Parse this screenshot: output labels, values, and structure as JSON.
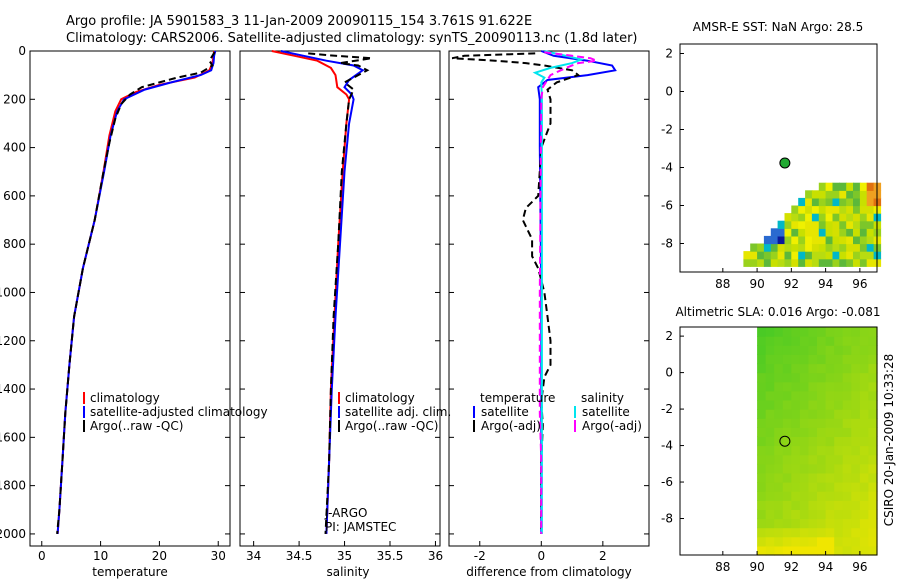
{
  "figure": {
    "title_line1": "Argo profile: JA 5901583_3 11-Jan-2009 20090115_154 3.761S 91.622E",
    "title_line2": "Climatology: CARS2006. Satellite-adjusted climatology: synTS_20090113.nc (1.8d later)",
    "side_label": "CSIRO 20-Jan-2009 10:33:28",
    "float_label_1": "J-ARGO",
    "float_label_2": "PI: JAMSTEC"
  },
  "colors": {
    "climatology": "#ff0000",
    "satellite": "#0000ff",
    "argo": "#000000",
    "sal_satellite": "#00e5ee",
    "sal_argo": "#ff00ff",
    "marker": "#22aa33"
  },
  "chart_data": [
    {
      "type": "line",
      "name": "temperature-profile",
      "xlabel": "temperature",
      "ylabel": "",
      "xlim": [
        -2,
        32
      ],
      "ylim": [
        2050,
        0
      ],
      "xticks": [
        0,
        10,
        20,
        30
      ],
      "yticks": [
        0,
        200,
        400,
        600,
        800,
        1000,
        1200,
        1400,
        1600,
        1800,
        2000
      ],
      "legend": [
        "climatology",
        "satellite-adjusted climatology",
        "Argo(..raw -QC)"
      ],
      "series": [
        {
          "name": "climatology",
          "style": "solid",
          "color": "climatology",
          "points": [
            [
              29.3,
              0
            ],
            [
              29.2,
              20
            ],
            [
              29,
              50
            ],
            [
              28.5,
              80
            ],
            [
              26,
              110
            ],
            [
              20,
              140
            ],
            [
              16,
              170
            ],
            [
              13.5,
              200
            ],
            [
              12.5,
              250
            ],
            [
              11.5,
              350
            ],
            [
              10.5,
              500
            ],
            [
              9,
              700
            ],
            [
              7,
              900
            ],
            [
              5.5,
              1100
            ],
            [
              4.7,
              1300
            ],
            [
              4,
              1500
            ],
            [
              3.5,
              1700
            ],
            [
              3,
              1900
            ],
            [
              2.7,
              2000
            ]
          ]
        },
        {
          "name": "satellite-adjusted climatology",
          "style": "solid",
          "color": "satellite",
          "points": [
            [
              29.5,
              0
            ],
            [
              29.3,
              20
            ],
            [
              29.2,
              50
            ],
            [
              28.8,
              80
            ],
            [
              27,
              100
            ],
            [
              22,
              130
            ],
            [
              17.5,
              160
            ],
            [
              14,
              200
            ],
            [
              12.8,
              250
            ],
            [
              11.7,
              350
            ],
            [
              10.6,
              500
            ],
            [
              9,
              700
            ],
            [
              7,
              900
            ],
            [
              5.5,
              1100
            ],
            [
              4.7,
              1300
            ],
            [
              4,
              1500
            ],
            [
              3.5,
              1700
            ],
            [
              3,
              1900
            ],
            [
              2.7,
              2000
            ]
          ]
        },
        {
          "name": "Argo(..raw -QC)",
          "style": "dashed",
          "color": "argo",
          "points": [
            [
              29.4,
              5
            ],
            [
              29,
              20
            ],
            [
              28.5,
              40
            ],
            [
              29,
              60
            ],
            [
              27,
              90
            ],
            [
              23,
              110
            ],
            [
              20,
              130
            ],
            [
              17,
              150
            ],
            [
              15,
              180
            ],
            [
              13.5,
              220
            ],
            [
              12.5,
              280
            ],
            [
              11.5,
              380
            ],
            [
              10.5,
              500
            ],
            [
              9,
              700
            ],
            [
              7,
              900
            ],
            [
              5.5,
              1100
            ],
            [
              4.7,
              1300
            ],
            [
              4,
              1500
            ],
            [
              3.5,
              1700
            ],
            [
              3,
              1900
            ],
            [
              2.6,
              2000
            ]
          ]
        }
      ]
    },
    {
      "type": "line",
      "name": "salinity-profile",
      "xlabel": "salinity",
      "ylabel": "",
      "xlim": [
        33.85,
        36.05
      ],
      "ylim": [
        2050,
        0
      ],
      "xticks": [
        34,
        34.5,
        35,
        35.5,
        36
      ],
      "legend": [
        "climatology",
        "satellite adj. clim.",
        "Argo(..raw -QC)"
      ],
      "series": [
        {
          "name": "climatology",
          "style": "solid",
          "color": "climatology",
          "points": [
            [
              34.2,
              0
            ],
            [
              34.45,
              20
            ],
            [
              34.7,
              40
            ],
            [
              34.85,
              70
            ],
            [
              34.9,
              100
            ],
            [
              34.92,
              150
            ],
            [
              35.02,
              180
            ],
            [
              35.05,
              200
            ],
            [
              35.02,
              300
            ],
            [
              34.98,
              500
            ],
            [
              34.93,
              800
            ],
            [
              34.89,
              1100
            ],
            [
              34.85,
              1400
            ],
            [
              34.83,
              1700
            ],
            [
              34.8,
              2000
            ]
          ]
        },
        {
          "name": "satellite adj. clim.",
          "style": "solid",
          "color": "satellite",
          "points": [
            [
              34.3,
              0
            ],
            [
              34.55,
              20
            ],
            [
              34.8,
              40
            ],
            [
              35.1,
              60
            ],
            [
              35.2,
              80
            ],
            [
              35.05,
              120
            ],
            [
              35.0,
              150
            ],
            [
              35.08,
              180
            ],
            [
              35.1,
              200
            ],
            [
              35.05,
              300
            ],
            [
              35.0,
              500
            ],
            [
              34.95,
              800
            ],
            [
              34.9,
              1100
            ],
            [
              34.86,
              1400
            ],
            [
              34.83,
              1700
            ],
            [
              34.8,
              2000
            ]
          ]
        },
        {
          "name": "Argo(..raw -QC)",
          "style": "dashed",
          "color": "argo",
          "points": [
            [
              34.6,
              10
            ],
            [
              34.9,
              20
            ],
            [
              35.3,
              30
            ],
            [
              34.95,
              50
            ],
            [
              35.15,
              60
            ],
            [
              35.25,
              80
            ],
            [
              35.1,
              110
            ],
            [
              35.0,
              130
            ],
            [
              35.1,
              160
            ],
            [
              35.05,
              200
            ],
            [
              35.02,
              300
            ],
            [
              34.97,
              500
            ],
            [
              34.93,
              800
            ],
            [
              34.88,
              1100
            ],
            [
              34.85,
              1400
            ],
            [
              34.83,
              1700
            ],
            [
              34.79,
              2000
            ]
          ]
        }
      ]
    },
    {
      "type": "line",
      "name": "difference-profile",
      "xlabel": "difference from climatology",
      "ylabel": "",
      "xlim": [
        -3,
        3.5
      ],
      "ylim": [
        2050,
        0
      ],
      "xticks": [
        -2,
        0,
        2
      ],
      "legend_title_1": "temperature",
      "legend_title_2": "salinity",
      "legend": [
        "satellite",
        "Argo(-adj)",
        "satellite",
        "Argo(-adj)"
      ],
      "series": [
        {
          "name": "temperature satellite",
          "style": "solid",
          "color": "satellite",
          "points": [
            [
              0,
              0
            ],
            [
              0.4,
              20
            ],
            [
              1.5,
              40
            ],
            [
              2.3,
              60
            ],
            [
              2.4,
              80
            ],
            [
              1.5,
              100
            ],
            [
              0.2,
              120
            ],
            [
              -0.1,
              150
            ],
            [
              -0.05,
              200
            ],
            [
              -0.05,
              400
            ],
            [
              0,
              1000
            ],
            [
              0,
              2000
            ]
          ]
        },
        {
          "name": "temperature Argo(-adj)",
          "style": "dashed",
          "color": "argo",
          "points": [
            [
              -0.2,
              10
            ],
            [
              -2.5,
              20
            ],
            [
              -2.9,
              30
            ],
            [
              -1.5,
              40
            ],
            [
              -0.5,
              50
            ],
            [
              0.1,
              60
            ],
            [
              1,
              80
            ],
            [
              1.2,
              100
            ],
            [
              0.5,
              130
            ],
            [
              0.2,
              160
            ],
            [
              0.3,
              200
            ],
            [
              0.3,
              300
            ],
            [
              0,
              400
            ],
            [
              -0.1,
              600
            ],
            [
              -0.5,
              650
            ],
            [
              -0.6,
              700
            ],
            [
              -0.3,
              780
            ],
            [
              -0.3,
              850
            ],
            [
              -0.1,
              900
            ],
            [
              0.1,
              1000
            ],
            [
              0.2,
              1100
            ],
            [
              0.3,
              1200
            ],
            [
              0.3,
              1300
            ],
            [
              0.1,
              1350
            ],
            [
              0,
              1450
            ],
            [
              0.05,
              1550
            ],
            [
              0,
              1700
            ],
            [
              0,
              1900
            ],
            [
              0,
              2000
            ]
          ]
        },
        {
          "name": "salinity satellite",
          "style": "solid",
          "color": "sal_satellite",
          "points": [
            [
              0.1,
              0
            ],
            [
              0.8,
              20
            ],
            [
              1.3,
              35
            ],
            [
              1.0,
              50
            ],
            [
              0.3,
              70
            ],
            [
              -0.2,
              90
            ],
            [
              0.1,
              110
            ],
            [
              0,
              130
            ],
            [
              0.02,
              200
            ],
            [
              0.02,
              400
            ],
            [
              0.02,
              1000
            ],
            [
              0.02,
              2000
            ]
          ]
        },
        {
          "name": "salinity Argo(-adj)",
          "style": "dashed",
          "color": "sal_argo",
          "points": [
            [
              0.1,
              5
            ],
            [
              1.0,
              20
            ],
            [
              1.6,
              30
            ],
            [
              1.8,
              40
            ],
            [
              1.2,
              50
            ],
            [
              0.8,
              70
            ],
            [
              0.3,
              100
            ],
            [
              0.05,
              150
            ],
            [
              0,
              200
            ],
            [
              -0.02,
              500
            ],
            [
              -0.05,
              1000
            ],
            [
              -0.05,
              1500
            ],
            [
              0,
              1700
            ],
            [
              0,
              2000
            ]
          ]
        }
      ]
    },
    {
      "type": "heatmap",
      "name": "sst-map",
      "title": "AMSR-E SST: NaN Argo: 28.5",
      "xlim": [
        85.5,
        97
      ],
      "ylim": [
        -9.5,
        2.5
      ],
      "xticks": [
        88,
        90,
        92,
        94,
        96
      ],
      "yticks": [
        2,
        0,
        -2,
        -4,
        -6,
        -8
      ],
      "argo_position": [
        91.622,
        -3.761
      ],
      "data_region": "lower-right, south of about 5S and east of about 89E"
    },
    {
      "type": "heatmap",
      "name": "sla-map",
      "title": "Altimetric SLA: 0.016 Argo: -0.081",
      "xlim": [
        85.5,
        97
      ],
      "ylim": [
        -10,
        2.5
      ],
      "xticks": [
        88,
        90,
        92,
        94,
        96
      ],
      "yticks": [
        2,
        0,
        -2,
        -4,
        -6,
        -8
      ],
      "argo_position": [
        91.622,
        -3.761
      ],
      "data_region": "east of 90E"
    }
  ]
}
